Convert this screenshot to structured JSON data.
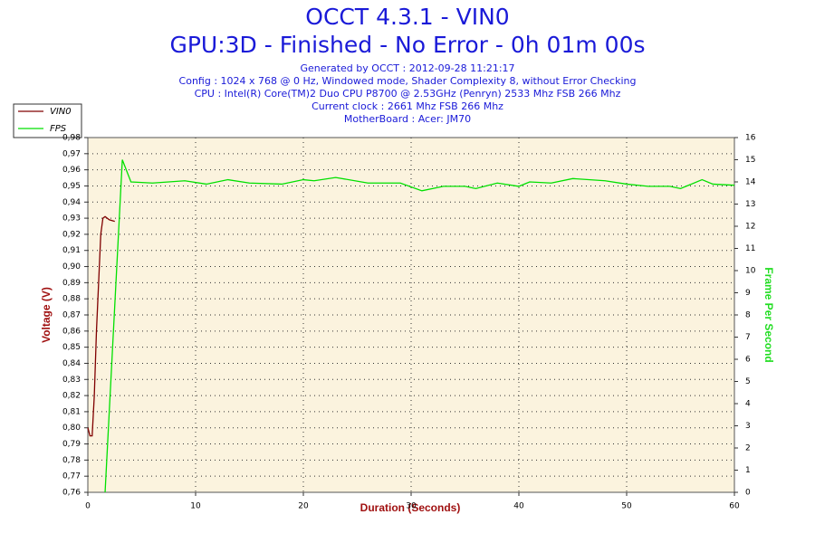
{
  "chart_data": {
    "type": "line",
    "title": "OCCT 4.3.1 - VIN0",
    "subtitle": "GPU:3D - Finished - No Error - 0h 01m 00s",
    "info": [
      "Generated by OCCT : 2012-09-28 11:21:17",
      "Config : 1024 x 768 @ 0 Hz, Windowed mode, Shader Complexity 8, without Error Checking",
      "CPU : Intel(R) Core(TM)2 Duo CPU P8700 @ 2.53GHz (Penryn) 2533 Mhz FSB 266 Mhz",
      "Current clock : 2661 Mhz FSB 266 Mhz",
      "MotherBoard : Acer: JM70"
    ],
    "x_label": "Duration (Seconds)",
    "y_label": "Voltage (V)",
    "y2_label": "Frame Per Second",
    "xlim": [
      0,
      60
    ],
    "xticks": [
      0,
      10,
      20,
      30,
      40,
      50,
      60
    ],
    "ylim": [
      0.76,
      0.98
    ],
    "yticks": [
      {
        "value": 0.76,
        "label": "0,76"
      },
      {
        "value": 0.77,
        "label": "0,77"
      },
      {
        "value": 0.78,
        "label": "0,78"
      },
      {
        "value": 0.79,
        "label": "0,79"
      },
      {
        "value": 0.8,
        "label": "0,80"
      },
      {
        "value": 0.81,
        "label": "0,81"
      },
      {
        "value": 0.82,
        "label": "0,82"
      },
      {
        "value": 0.83,
        "label": "0,83"
      },
      {
        "value": 0.84,
        "label": "0,84"
      },
      {
        "value": 0.85,
        "label": "0,85"
      },
      {
        "value": 0.86,
        "label": "0,86"
      },
      {
        "value": 0.87,
        "label": "0,87"
      },
      {
        "value": 0.88,
        "label": "0,88"
      },
      {
        "value": 0.89,
        "label": "0,89"
      },
      {
        "value": 0.9,
        "label": "0,90"
      },
      {
        "value": 0.91,
        "label": "0,91"
      },
      {
        "value": 0.92,
        "label": "0,92"
      },
      {
        "value": 0.93,
        "label": "0,93"
      },
      {
        "value": 0.94,
        "label": "0,94"
      },
      {
        "value": 0.95,
        "label": "0,95"
      },
      {
        "value": 0.96,
        "label": "0,96"
      },
      {
        "value": 0.97,
        "label": "0,97"
      },
      {
        "value": 0.98,
        "label": "0,98"
      }
    ],
    "y2lim": [
      0,
      16
    ],
    "y2ticks": [
      0,
      1,
      2,
      3,
      4,
      5,
      6,
      7,
      8,
      9,
      10,
      11,
      12,
      13,
      14,
      15,
      16
    ],
    "grid": true,
    "series": [
      {
        "name": "VIN0",
        "color": "#800000",
        "x": [
          0,
          0.2,
          0.4,
          0.6,
          0.8,
          1.0,
          1.2,
          1.4,
          1.6,
          2.0,
          2.5
        ],
        "values": [
          0.8,
          0.795,
          0.795,
          0.82,
          0.86,
          0.89,
          0.92,
          0.93,
          0.931,
          0.929,
          0.928
        ]
      },
      {
        "name": "FPS",
        "color": "#00e000",
        "axis": "y2",
        "x": [
          1.6,
          3.2,
          4,
          6,
          9,
          11,
          13,
          15,
          18,
          20,
          21,
          23,
          26,
          29,
          31,
          33,
          35,
          36,
          38,
          40,
          41,
          43,
          45,
          48,
          50,
          52,
          54,
          55,
          57,
          58,
          60
        ],
        "values": [
          0,
          15,
          14,
          13.95,
          14.05,
          13.9,
          14.1,
          13.95,
          13.9,
          14.1,
          14.05,
          14.2,
          13.95,
          13.95,
          13.6,
          13.8,
          13.8,
          13.7,
          13.95,
          13.8,
          14,
          13.95,
          14.15,
          14.05,
          13.9,
          13.8,
          13.8,
          13.7,
          14.1,
          13.9,
          13.85
        ]
      }
    ]
  }
}
